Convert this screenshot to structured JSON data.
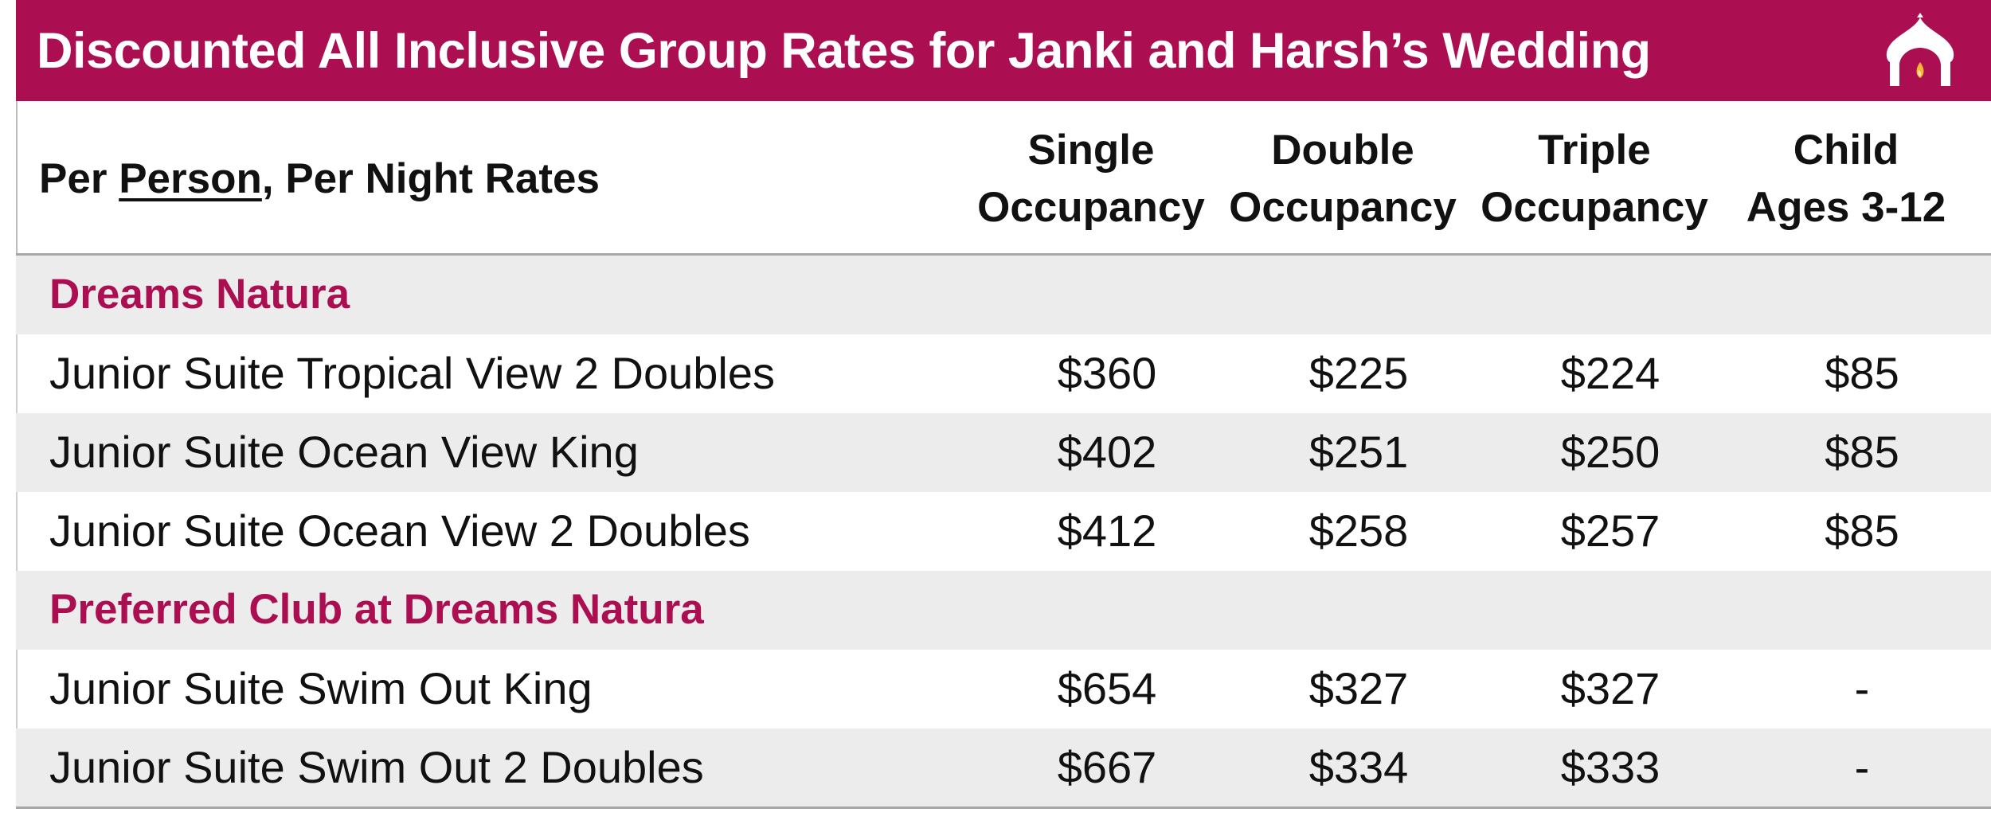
{
  "title": "Discounted All Inclusive Group Rates for Janki and Harsh’s Wedding",
  "logo": {
    "icon": "temple-arch-flame-icon",
    "color": "#ffffff",
    "flame_color": "#f5b731"
  },
  "colors": {
    "accent": "#ab0f52",
    "row_shade": "#ececec"
  },
  "header": {
    "rate_label_prefix": "Per ",
    "rate_label_underlined": "Person",
    "rate_label_suffix": ", Per Night Rates",
    "columns": [
      {
        "line1": "Single",
        "line2": "Occupancy"
      },
      {
        "line1": "Double",
        "line2": "Occupancy"
      },
      {
        "line1": "Triple",
        "line2": "Occupancy"
      },
      {
        "line1": "Child",
        "line2": "Ages 3-12"
      }
    ]
  },
  "sections": [
    {
      "name": "Dreams Natura",
      "rooms": [
        {
          "name": "Junior Suite Tropical View 2 Doubles",
          "rates": [
            "$360",
            "$225",
            "$224",
            "$85"
          ]
        },
        {
          "name": "Junior Suite Ocean View King",
          "rates": [
            "$402",
            "$251",
            "$250",
            "$85"
          ]
        },
        {
          "name": "Junior Suite Ocean View 2 Doubles",
          "rates": [
            "$412",
            "$258",
            "$257",
            "$85"
          ]
        }
      ]
    },
    {
      "name": "Preferred Club at Dreams Natura",
      "rooms": [
        {
          "name": "Junior Suite Swim Out King",
          "rates": [
            "$654",
            "$327",
            "$327",
            "-"
          ]
        },
        {
          "name": "Junior Suite Swim Out 2 Doubles",
          "rates": [
            "$667",
            "$334",
            "$333",
            "-"
          ]
        }
      ]
    }
  ]
}
